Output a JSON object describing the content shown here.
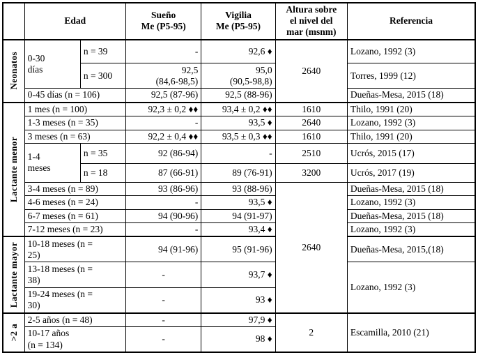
{
  "colors": {
    "background": "#ffffff",
    "border": "#000000",
    "text": "#000000"
  },
  "table": {
    "header": [
      {
        "c": "group",
        "t": ""
      },
      {
        "c": "edad",
        "t": "Edad",
        "cs": 2
      },
      {
        "c": "sueno",
        "t": "Sueño\nMe (P5-95)"
      },
      {
        "c": "vigilia",
        "t": "Vigilia\nMe (P5-95)"
      },
      {
        "c": "altura",
        "t": "Altura sobre\nel nivel del\nmar (msnm)"
      },
      {
        "c": "ref",
        "t": "Referencia"
      }
    ],
    "rows": [
      {
        "sec": false,
        "cells": [
          {
            "c": "group",
            "t": "Neonatos",
            "rs": 3
          },
          {
            "c": "edad",
            "t": "0-30\ndías",
            "rs": 2
          },
          {
            "c": "edad",
            "t": "n = 39"
          },
          {
            "c": "sueno",
            "t": "-"
          },
          {
            "c": "vigilia",
            "t": "92,6 ♦"
          },
          {
            "c": "altura",
            "t": "2640",
            "rs": 3
          },
          {
            "c": "ref",
            "t": "Lozano, 1992 (3)"
          }
        ]
      },
      {
        "sec": false,
        "cells": [
          {
            "c": "edad",
            "t": "n = 300"
          },
          {
            "c": "sueno",
            "t": "92,5\n(84,6-98,5)"
          },
          {
            "c": "vigilia",
            "t": "95,0\n(90,5-98,8)"
          },
          {
            "c": "ref",
            "t": "Torres, 1999 (12)"
          }
        ]
      },
      {
        "sec": false,
        "cells": [
          {
            "c": "edad",
            "t": "0-45 días (n = 106)",
            "cs": 2
          },
          {
            "c": "sueno",
            "t": "92,5 (87-96)"
          },
          {
            "c": "vigilia",
            "t": "92,5 (88-96)"
          },
          {
            "c": "ref",
            "t": "Dueñas-Mesa, 2015 (18)"
          }
        ]
      },
      {
        "sec": true,
        "cells": [
          {
            "c": "group",
            "t": "Lactante menor",
            "rs": 9
          },
          {
            "c": "edad",
            "t": "1 mes (n = 100)",
            "cs": 2
          },
          {
            "c": "sueno",
            "t": "92,3 ± 0,2 ♦♦"
          },
          {
            "c": "vigilia",
            "t": "93,4 ± 0,2 ♦♦"
          },
          {
            "c": "altura",
            "t": "1610"
          },
          {
            "c": "ref",
            "t": "Thilo, 1991 (20)"
          }
        ]
      },
      {
        "sec": false,
        "cells": [
          {
            "c": "edad",
            "t": "1-3 meses (n = 35)",
            "cs": 2
          },
          {
            "c": "sueno",
            "t": "-"
          },
          {
            "c": "vigilia",
            "t": "93,5 ♦"
          },
          {
            "c": "altura",
            "t": "2640"
          },
          {
            "c": "ref",
            "t": "Lozano, 1992 (3)"
          }
        ]
      },
      {
        "sec": false,
        "cells": [
          {
            "c": "edad",
            "t": "3 meses (n = 63)",
            "cs": 2
          },
          {
            "c": "sueno",
            "t": "92,2 ± 0,4 ♦♦"
          },
          {
            "c": "vigilia",
            "t": "93,5 ± 0,3 ♦♦"
          },
          {
            "c": "altura",
            "t": "1610"
          },
          {
            "c": "ref",
            "t": "Thilo, 1991 (20)"
          }
        ]
      },
      {
        "sec": false,
        "cells": [
          {
            "c": "edad",
            "t": "1-4\nmeses",
            "rs": 2
          },
          {
            "c": "edad",
            "t": "n = 35"
          },
          {
            "c": "sueno",
            "t": "92 (86-94)"
          },
          {
            "c": "vigilia",
            "t": "-"
          },
          {
            "c": "altura",
            "t": "2510"
          },
          {
            "c": "ref",
            "t": "Ucrós, 2015 (17)"
          }
        ]
      },
      {
        "sec": false,
        "cells": [
          {
            "c": "edad",
            "t": "n = 18"
          },
          {
            "c": "sueno",
            "t": "87 (66-91)"
          },
          {
            "c": "vigilia",
            "t": "89 (76-91)"
          },
          {
            "c": "altura",
            "t": "3200"
          },
          {
            "c": "ref",
            "t": "Ucrós, 2017 (19)"
          }
        ]
      },
      {
        "sec": false,
        "cells": [
          {
            "c": "edad",
            "t": "3-4 meses (n = 89)",
            "cs": 2
          },
          {
            "c": "sueno",
            "t": "93 (86-96)"
          },
          {
            "c": "vigilia",
            "t": "93 (88-96)"
          },
          {
            "c": "altura",
            "t": "2640",
            "rs": 7
          },
          {
            "c": "ref",
            "t": "Dueñas-Mesa, 2015 (18)"
          }
        ]
      },
      {
        "sec": false,
        "cells": [
          {
            "c": "edad",
            "t": "4-6 meses (n = 24)",
            "cs": 2
          },
          {
            "c": "sueno",
            "t": "-"
          },
          {
            "c": "vigilia",
            "t": "93,5 ♦"
          },
          {
            "c": "ref",
            "t": "Lozano, 1992 (3)"
          }
        ]
      },
      {
        "sec": false,
        "cells": [
          {
            "c": "edad",
            "t": "6-7 meses (n = 61)",
            "cs": 2
          },
          {
            "c": "sueno",
            "t": "94 (90-96)"
          },
          {
            "c": "vigilia",
            "t": "94 (91-97)"
          },
          {
            "c": "ref",
            "t": "Dueñas-Mesa, 2015 (18)"
          }
        ]
      },
      {
        "sec": false,
        "cells": [
          {
            "c": "edad",
            "t": "7-12 meses (n = 23)",
            "cs": 2
          },
          {
            "c": "sueno",
            "t": "-"
          },
          {
            "c": "vigilia",
            "t": "93,4 ♦"
          },
          {
            "c": "ref",
            "t": "Lozano, 1992 (3)"
          }
        ]
      },
      {
        "sec": true,
        "cells": [
          {
            "c": "group",
            "t": "Lactante mayor",
            "rs": 3
          },
          {
            "c": "edad",
            "t": "10-18 meses (n =\n25)",
            "cs": 2
          },
          {
            "c": "sueno",
            "t": "94 (91-96)"
          },
          {
            "c": "vigilia",
            "t": "95 (91-96)"
          },
          {
            "c": "ref",
            "t": "Dueñas-Mesa, 2015,(18)"
          }
        ]
      },
      {
        "sec": false,
        "cells": [
          {
            "c": "edad",
            "t": "13-18 meses (n =\n38)",
            "cs": 2
          },
          {
            "c": "sueno",
            "t": "-",
            "al": "c"
          },
          {
            "c": "vigilia",
            "t": "93,7 ♦"
          },
          {
            "c": "ref",
            "t": "Lozano, 1992 (3)",
            "rs": 2
          }
        ]
      },
      {
        "sec": false,
        "cells": [
          {
            "c": "edad",
            "t": "19-24 meses (n =\n30)",
            "cs": 2
          },
          {
            "c": "sueno",
            "t": "-",
            "al": "c"
          },
          {
            "c": "vigilia",
            "t": "93 ♦"
          }
        ]
      },
      {
        "sec": true,
        "cells": [
          {
            "c": "group",
            "t": ">2 a",
            "rs": 2
          },
          {
            "c": "edad",
            "t": "2-5 años (n = 48)",
            "cs": 2
          },
          {
            "c": "sueno",
            "t": "-",
            "al": "c"
          },
          {
            "c": "vigilia",
            "t": "97,9 ♦"
          },
          {
            "c": "altura",
            "t": "2",
            "rs": 2
          },
          {
            "c": "ref",
            "t": "Escamilla, 2010 (21)",
            "rs": 2
          }
        ]
      },
      {
        "sec": false,
        "cells": [
          {
            "c": "edad",
            "t": "10-17 años\n(n = 134)",
            "cs": 2
          },
          {
            "c": "sueno",
            "t": "-",
            "al": "c"
          },
          {
            "c": "vigilia",
            "t": "98 ♦"
          }
        ]
      }
    ]
  }
}
